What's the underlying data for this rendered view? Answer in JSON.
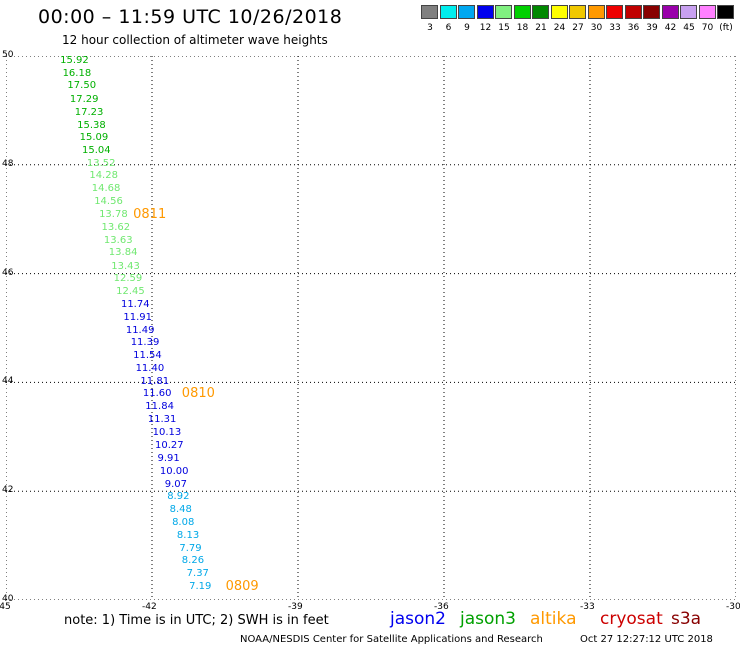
{
  "header": {
    "title": "00:00 – 11:59 UTC 10/26/2018",
    "subtitle": "12 hour collection of altimeter wave heights"
  },
  "color_scale": {
    "swatches": [
      {
        "color": "#808080",
        "label": "3"
      },
      {
        "color": "#00eeee",
        "label": "6"
      },
      {
        "color": "#00a8f0",
        "label": "9"
      },
      {
        "color": "#0000ee",
        "label": "12"
      },
      {
        "color": "#80f080",
        "label": "15"
      },
      {
        "color": "#00d000",
        "label": "18"
      },
      {
        "color": "#008800",
        "label": "21"
      },
      {
        "color": "#ffff00",
        "label": "24"
      },
      {
        "color": "#f0c800",
        "label": "27"
      },
      {
        "color": "#ff9900",
        "label": "30"
      },
      {
        "color": "#ee0000",
        "label": "33"
      },
      {
        "color": "#c00000",
        "label": "36"
      },
      {
        "color": "#880000",
        "label": "39"
      },
      {
        "color": "#9900aa",
        "label": "42"
      },
      {
        "color": "#c8a0f0",
        "label": "45"
      },
      {
        "color": "#ff80ff",
        "label": "70"
      },
      {
        "color": "#000000",
        "label": "(ft)"
      }
    ]
  },
  "map": {
    "lon_labels": [
      "-45",
      "-42",
      "-39",
      "-36",
      "-33",
      "-30"
    ],
    "lat_labels": [
      "40",
      "42",
      "44",
      "46",
      "48",
      "50"
    ],
    "lon_range": [
      -45,
      -30
    ],
    "lat_range": [
      40,
      50
    ],
    "observations": [
      {
        "lat": 49.9,
        "lon": -43.6,
        "value": "15.92",
        "color": "#00b000"
      },
      {
        "lat": 49.67,
        "lon": -43.55,
        "value": "16.18",
        "color": "#00b000"
      },
      {
        "lat": 49.44,
        "lon": -43.45,
        "value": "17.50",
        "color": "#00b000"
      },
      {
        "lat": 49.2,
        "lon": -43.4,
        "value": "17.29",
        "color": "#00b000"
      },
      {
        "lat": 48.96,
        "lon": -43.3,
        "value": "17.23",
        "color": "#00b000"
      },
      {
        "lat": 48.72,
        "lon": -43.25,
        "value": "15.38",
        "color": "#00b000"
      },
      {
        "lat": 48.49,
        "lon": -43.2,
        "value": "15.09",
        "color": "#00b000"
      },
      {
        "lat": 48.25,
        "lon": -43.15,
        "value": "15.04",
        "color": "#00b000"
      },
      {
        "lat": 48.02,
        "lon": -43.05,
        "value": "13.52",
        "color": "#70e870"
      },
      {
        "lat": 47.79,
        "lon": -43.0,
        "value": "14.28",
        "color": "#70e870"
      },
      {
        "lat": 47.55,
        "lon": -42.95,
        "value": "14.68",
        "color": "#70e870"
      },
      {
        "lat": 47.31,
        "lon": -42.9,
        "value": "14.56",
        "color": "#70e870"
      },
      {
        "lat": 47.08,
        "lon": -42.8,
        "value": "13.78",
        "color": "#70e870"
      },
      {
        "lat": 46.84,
        "lon": -42.75,
        "value": "13.62",
        "color": "#70e870"
      },
      {
        "lat": 46.6,
        "lon": -42.7,
        "value": "13.63",
        "color": "#70e870"
      },
      {
        "lat": 46.37,
        "lon": -42.6,
        "value": "13.84",
        "color": "#70e870"
      },
      {
        "lat": 46.13,
        "lon": -42.55,
        "value": "13.43",
        "color": "#70e870"
      },
      {
        "lat": 45.9,
        "lon": -42.5,
        "value": "12.59",
        "color": "#70e870"
      },
      {
        "lat": 45.66,
        "lon": -42.45,
        "value": "12.45",
        "color": "#70e870"
      },
      {
        "lat": 45.43,
        "lon": -42.35,
        "value": "11.74",
        "color": "#0000dd"
      },
      {
        "lat": 45.19,
        "lon": -42.3,
        "value": "11.91",
        "color": "#0000dd"
      },
      {
        "lat": 44.95,
        "lon": -42.25,
        "value": "11.49",
        "color": "#0000dd"
      },
      {
        "lat": 44.72,
        "lon": -42.15,
        "value": "11.39",
        "color": "#0000dd"
      },
      {
        "lat": 44.48,
        "lon": -42.1,
        "value": "11.54",
        "color": "#0000dd"
      },
      {
        "lat": 44.25,
        "lon": -42.05,
        "value": "11.40",
        "color": "#0000dd"
      },
      {
        "lat": 44.01,
        "lon": -41.95,
        "value": "11.81",
        "color": "#0000dd"
      },
      {
        "lat": 43.78,
        "lon": -41.9,
        "value": "11.60",
        "color": "#0000dd"
      },
      {
        "lat": 43.54,
        "lon": -41.85,
        "value": "11.84",
        "color": "#0000dd"
      },
      {
        "lat": 43.3,
        "lon": -41.8,
        "value": "11.31",
        "color": "#0000dd"
      },
      {
        "lat": 43.07,
        "lon": -41.7,
        "value": "10.13",
        "color": "#0000dd"
      },
      {
        "lat": 42.83,
        "lon": -41.65,
        "value": "10.27",
        "color": "#0000dd"
      },
      {
        "lat": 42.6,
        "lon": -41.6,
        "value": "9.91",
        "color": "#0000dd"
      },
      {
        "lat": 42.36,
        "lon": -41.55,
        "value": "10.00",
        "color": "#0000dd"
      },
      {
        "lat": 42.12,
        "lon": -41.45,
        "value": "9.07",
        "color": "#0000dd"
      },
      {
        "lat": 41.89,
        "lon": -41.4,
        "value": "8.92",
        "color": "#00a8e8"
      },
      {
        "lat": 41.65,
        "lon": -41.35,
        "value": "8.48",
        "color": "#00a8e8"
      },
      {
        "lat": 41.42,
        "lon": -41.3,
        "value": "8.08",
        "color": "#00a8e8"
      },
      {
        "lat": 41.18,
        "lon": -41.2,
        "value": "8.13",
        "color": "#00a8e8"
      },
      {
        "lat": 40.94,
        "lon": -41.15,
        "value": "7.79",
        "color": "#00a8e8"
      },
      {
        "lat": 40.71,
        "lon": -41.1,
        "value": "8.26",
        "color": "#00a8e8"
      },
      {
        "lat": 40.47,
        "lon": -41.0,
        "value": "7.37",
        "color": "#00a8e8"
      },
      {
        "lat": 40.24,
        "lon": -40.95,
        "value": "7.19",
        "color": "#00a8e8"
      }
    ],
    "pass_labels": [
      {
        "lat": 47.08,
        "lon": -42.1,
        "text": "0811"
      },
      {
        "lat": 43.78,
        "lon": -41.1,
        "text": "0810"
      },
      {
        "lat": 40.24,
        "lon": -40.2,
        "text": "0809"
      }
    ]
  },
  "footer": {
    "note": "note: 1) Time is in UTC; 2) SWH is in feet",
    "legend": [
      {
        "name": "jason2",
        "color": "#0000ee"
      },
      {
        "name": "jason3",
        "color": "#00a000"
      },
      {
        "name": "altika",
        "color": "#ff9900"
      },
      {
        "name": "cryosat",
        "color": "#cc0000"
      },
      {
        "name": "s3a",
        "color": "#880000"
      }
    ],
    "credit": "NOAA/NESDIS Center for Satellite Applications and Research",
    "timestamp": "Oct 27 12:27:12 UTC 2018"
  }
}
